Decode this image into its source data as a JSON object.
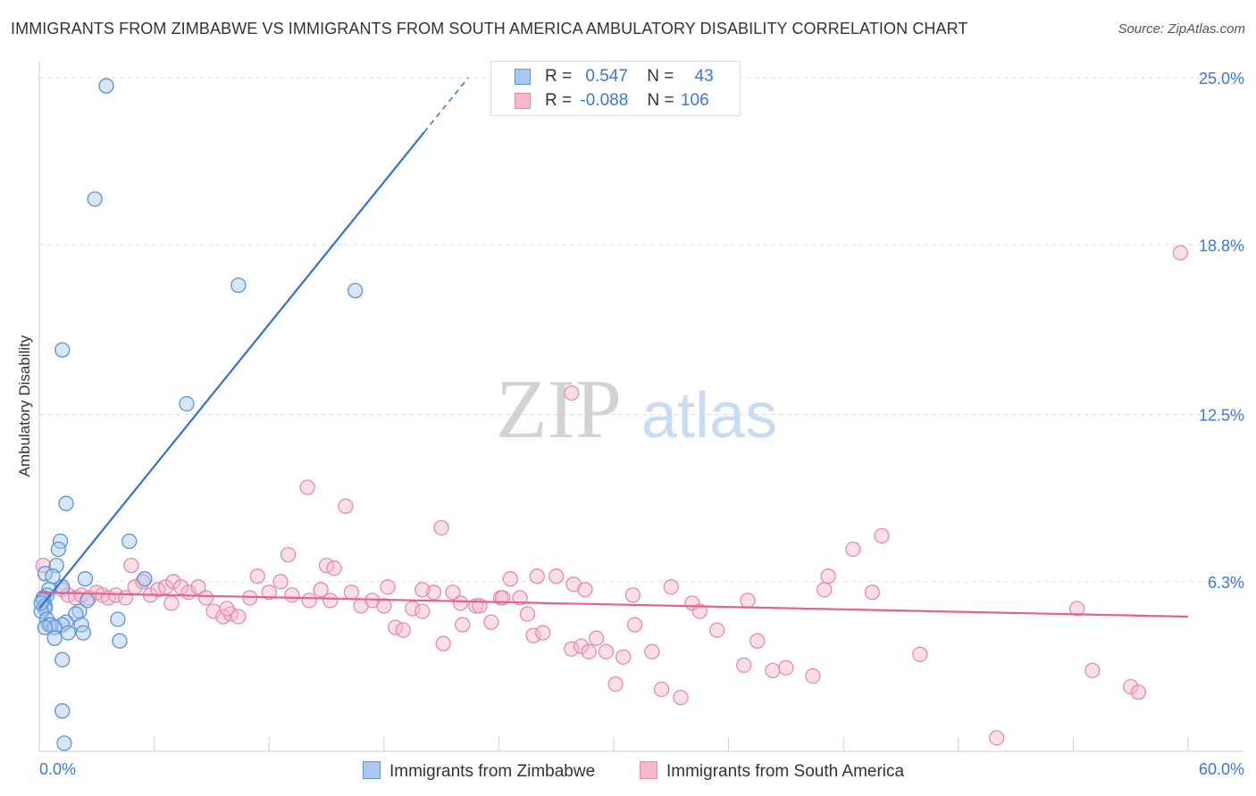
{
  "title": "IMMIGRANTS FROM ZIMBABWE VS IMMIGRANTS FROM SOUTH AMERICA AMBULATORY DISABILITY CORRELATION CHART",
  "source": "Source: ZipAtlas.com",
  "watermark": {
    "zip": "ZIP",
    "atlas": "atlas"
  },
  "colors": {
    "blue_fill": "#a8c8f0",
    "blue_stroke": "#5b93d8",
    "blue_line": "#2f72d0",
    "pink_fill": "#f7b8cd",
    "pink_stroke": "#e88aa8",
    "pink_line": "#e5628f",
    "grid": "#dddddd",
    "axis_text": "#3b78d4"
  },
  "legend": {
    "rows": [
      {
        "r_label": "R =",
        "r_value": "0.547",
        "n_label": "N =",
        "n_value": "43"
      },
      {
        "r_label": "R =",
        "r_value": "-0.088",
        "n_label": "N =",
        "n_value": "106"
      }
    ]
  },
  "bottom_legend": {
    "series1": "Immigrants from Zimbabwe",
    "series2": "Immigrants from South America"
  },
  "chart_data": {
    "type": "scatter",
    "ylabel": "Ambulatory Disability",
    "xlim": [
      0,
      60
    ],
    "ylim": [
      0,
      25.5
    ],
    "x_tick_labels": [
      "0.0%",
      "60.0%"
    ],
    "y_tick_labels": [
      "25.0%",
      "18.8%",
      "12.5%",
      "6.3%"
    ],
    "y_ticks": [
      25.0,
      18.8,
      12.5,
      6.3
    ],
    "grid": "horizontal dashed",
    "legend_position": "top-center",
    "series": [
      {
        "name": "Immigrants from Zimbabwe",
        "r": 0.547,
        "n": 43,
        "trend": {
          "x0": 0,
          "y0": 5.3,
          "x1": 22.4,
          "y1": 25.0,
          "solid_until_x": 20.1
        },
        "points": [
          [
            3.5,
            24.7
          ],
          [
            2.9,
            20.5
          ],
          [
            10.4,
            17.3
          ],
          [
            16.5,
            17.1
          ],
          [
            1.2,
            14.9
          ],
          [
            7.7,
            12.9
          ],
          [
            1.4,
            9.2
          ],
          [
            4.7,
            7.8
          ],
          [
            1.1,
            7.8
          ],
          [
            1.0,
            7.5
          ],
          [
            0.9,
            6.9
          ],
          [
            0.3,
            6.6
          ],
          [
            0.7,
            6.5
          ],
          [
            5.5,
            6.4
          ],
          [
            2.4,
            6.4
          ],
          [
            0.5,
            6.0
          ],
          [
            0.4,
            5.8
          ],
          [
            0.2,
            5.7
          ],
          [
            0.2,
            5.6
          ],
          [
            2.5,
            5.6
          ],
          [
            0.3,
            5.4
          ],
          [
            0.3,
            5.3
          ],
          [
            0.1,
            5.2
          ],
          [
            2.1,
            5.2
          ],
          [
            1.9,
            5.1
          ],
          [
            0.4,
            4.9
          ],
          [
            1.4,
            4.8
          ],
          [
            4.1,
            4.9
          ],
          [
            1.2,
            4.7
          ],
          [
            0.5,
            4.7
          ],
          [
            0.6,
            4.7
          ],
          [
            2.2,
            4.7
          ],
          [
            0.8,
            4.6
          ],
          [
            0.3,
            4.6
          ],
          [
            1.5,
            4.4
          ],
          [
            2.3,
            4.4
          ],
          [
            0.8,
            4.2
          ],
          [
            4.2,
            4.1
          ],
          [
            1.2,
            3.4
          ],
          [
            1.2,
            1.5
          ],
          [
            1.3,
            0.3
          ],
          [
            1.2,
            6.1
          ],
          [
            0.1,
            5.5
          ]
        ]
      },
      {
        "name": "Immigrants from South America",
        "r": -0.088,
        "n": 106,
        "trend": {
          "x0": 0,
          "y0": 5.9,
          "x1": 60,
          "y1": 5.0
        },
        "points": [
          [
            0.2,
            6.9
          ],
          [
            1.2,
            6.0
          ],
          [
            1.5,
            5.8
          ],
          [
            1.9,
            5.7
          ],
          [
            2.2,
            5.8
          ],
          [
            2.6,
            5.7
          ],
          [
            3.0,
            5.9
          ],
          [
            3.3,
            5.8
          ],
          [
            3.6,
            5.7
          ],
          [
            4.0,
            5.8
          ],
          [
            4.5,
            5.7
          ],
          [
            5.0,
            6.1
          ],
          [
            5.4,
            6.3
          ],
          [
            5.8,
            5.8
          ],
          [
            6.2,
            6.0
          ],
          [
            6.6,
            6.1
          ],
          [
            7.0,
            6.3
          ],
          [
            7.4,
            6.1
          ],
          [
            7.8,
            5.9
          ],
          [
            8.3,
            6.1
          ],
          [
            8.7,
            5.7
          ],
          [
            9.1,
            5.2
          ],
          [
            9.6,
            5.0
          ],
          [
            10.0,
            5.1
          ],
          [
            10.4,
            5.0
          ],
          [
            11.0,
            5.7
          ],
          [
            11.4,
            6.5
          ],
          [
            12.0,
            5.9
          ],
          [
            12.6,
            6.3
          ],
          [
            13.2,
            5.8
          ],
          [
            14.1,
            5.6
          ],
          [
            14.7,
            6.0
          ],
          [
            15.2,
            5.6
          ],
          [
            16.3,
            5.9
          ],
          [
            16.8,
            5.4
          ],
          [
            17.4,
            5.6
          ],
          [
            18.0,
            5.4
          ],
          [
            18.6,
            4.6
          ],
          [
            19.0,
            4.5
          ],
          [
            19.5,
            5.3
          ],
          [
            20.0,
            5.2
          ],
          [
            20.6,
            5.9
          ],
          [
            21.1,
            4.0
          ],
          [
            21.6,
            5.9
          ],
          [
            22.1,
            4.7
          ],
          [
            22.8,
            5.4
          ],
          [
            23.0,
            5.4
          ],
          [
            23.6,
            4.8
          ],
          [
            24.1,
            5.7
          ],
          [
            24.6,
            6.4
          ],
          [
            25.1,
            5.7
          ],
          [
            25.5,
            5.1
          ],
          [
            25.8,
            4.3
          ],
          [
            26.3,
            4.4
          ],
          [
            27.0,
            6.5
          ],
          [
            27.8,
            3.8
          ],
          [
            28.3,
            3.9
          ],
          [
            28.7,
            3.7
          ],
          [
            29.1,
            4.2
          ],
          [
            29.6,
            3.7
          ],
          [
            30.1,
            2.5
          ],
          [
            30.5,
            3.5
          ],
          [
            31.1,
            4.7
          ],
          [
            32.0,
            3.7
          ],
          [
            32.5,
            2.3
          ],
          [
            33.5,
            2.0
          ],
          [
            34.1,
            5.5
          ],
          [
            35.4,
            4.5
          ],
          [
            36.8,
            3.2
          ],
          [
            37.5,
            4.1
          ],
          [
            38.3,
            3.0
          ],
          [
            39.0,
            3.1
          ],
          [
            40.4,
            2.8
          ],
          [
            41.2,
            6.5
          ],
          [
            42.5,
            7.5
          ],
          [
            44.0,
            8.0
          ],
          [
            46.0,
            3.6
          ],
          [
            50.0,
            0.5
          ],
          [
            54.2,
            5.3
          ],
          [
            55.0,
            3.0
          ],
          [
            57.0,
            2.4
          ],
          [
            57.4,
            2.2
          ],
          [
            59.6,
            18.5
          ],
          [
            14.0,
            9.8
          ],
          [
            16.0,
            9.1
          ],
          [
            21.0,
            8.3
          ],
          [
            27.8,
            13.3
          ],
          [
            13.0,
            7.3
          ],
          [
            15.0,
            6.9
          ],
          [
            15.4,
            6.8
          ],
          [
            18.2,
            6.1
          ],
          [
            20.0,
            6.0
          ],
          [
            22.0,
            5.5
          ],
          [
            24.2,
            5.7
          ],
          [
            26.0,
            6.5
          ],
          [
            27.9,
            6.2
          ],
          [
            28.5,
            6.0
          ],
          [
            31.0,
            5.8
          ],
          [
            33.0,
            6.1
          ],
          [
            34.5,
            5.2
          ],
          [
            37.0,
            5.6
          ],
          [
            41.0,
            6.0
          ],
          [
            43.5,
            5.9
          ],
          [
            4.8,
            6.9
          ],
          [
            9.8,
            5.3
          ],
          [
            6.9,
            5.5
          ]
        ]
      }
    ]
  }
}
